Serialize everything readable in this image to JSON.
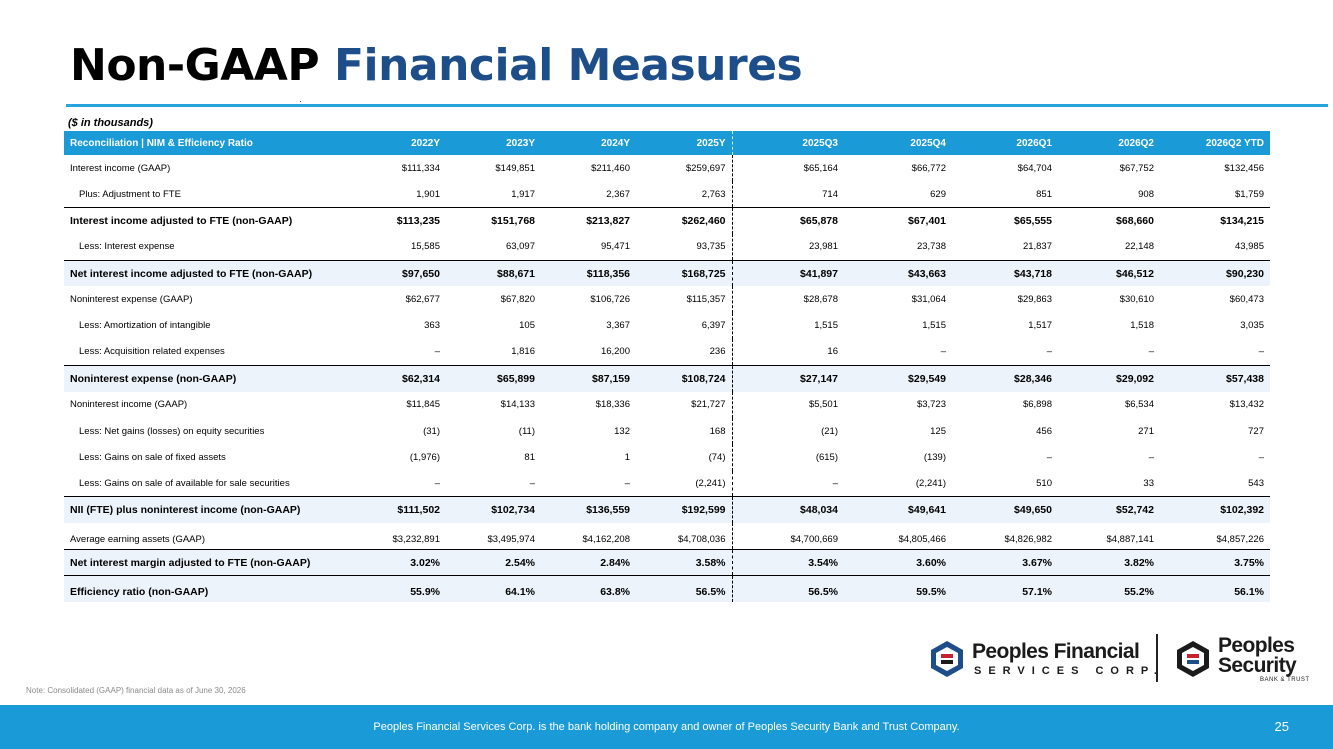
{
  "title": {
    "part1": "Non-GAAP",
    "part2": "Financial Measures"
  },
  "units": "($ in thousands)",
  "table": {
    "header_label": "Reconciliation | NIM & Efficiency Ratio",
    "columns": [
      "2022Y",
      "2023Y",
      "2024Y",
      "2025Y",
      "2025Q3",
      "2025Q4",
      "2026Q1",
      "2026Q2",
      "2026Q2 YTD"
    ],
    "rows": [
      {
        "label": "Interest income (GAAP)",
        "values": [
          "$111,334",
          "$149,851",
          "$211,460",
          "$259,697",
          "$65,164",
          "$66,772",
          "$64,704",
          "$67,752",
          "$132,456"
        ]
      },
      {
        "label": "Plus: Adjustment to FTE",
        "values": [
          "1,901",
          "1,917",
          "2,367",
          "2,763",
          "714",
          "629",
          "851",
          "908",
          "$1,759"
        ]
      },
      {
        "label": "Interest income adjusted to FTE (non-GAAP)",
        "values": [
          "$113,235",
          "$151,768",
          "$213,827",
          "$262,460",
          "$65,878",
          "$67,401",
          "$65,555",
          "$68,660",
          "$134,215"
        ]
      },
      {
        "label": "Less: Interest expense",
        "values": [
          "15,585",
          "63,097",
          "95,471",
          "93,735",
          "23,981",
          "23,738",
          "21,837",
          "22,148",
          "43,985"
        ]
      },
      {
        "label": "Net interest income adjusted to FTE (non-GAAP)",
        "values": [
          "$97,650",
          "$88,671",
          "$118,356",
          "$168,725",
          "$41,897",
          "$43,663",
          "$43,718",
          "$46,512",
          "$90,230"
        ]
      },
      {
        "label": "Noninterest expense (GAAP)",
        "values": [
          "$62,677",
          "$67,820",
          "$106,726",
          "$115,357",
          "$28,678",
          "$31,064",
          "$29,863",
          "$30,610",
          "$60,473"
        ]
      },
      {
        "label": "Less: Amortization of intangible",
        "values": [
          "363",
          "105",
          "3,367",
          "6,397",
          "1,515",
          "1,515",
          "1,517",
          "1,518",
          "3,035"
        ]
      },
      {
        "label": "Less: Acquisition related expenses",
        "values": [
          "–",
          "1,816",
          "16,200",
          "236",
          "16",
          "–",
          "–",
          "–",
          "–"
        ]
      },
      {
        "label": "Noninterest expense (non-GAAP)",
        "values": [
          "$62,314",
          "$65,899",
          "$87,159",
          "$108,724",
          "$27,147",
          "$29,549",
          "$28,346",
          "$29,092",
          "$57,438"
        ]
      },
      {
        "label": "Noninterest income (GAAP)",
        "values": [
          "$11,845",
          "$14,133",
          "$18,336",
          "$21,727",
          "$5,501",
          "$3,723",
          "$6,898",
          "$6,534",
          "$13,432"
        ]
      },
      {
        "label": "Less: Net gains (losses) on equity securities",
        "values": [
          "(31)",
          "(11)",
          "132",
          "168",
          "(21)",
          "125",
          "456",
          "271",
          "727"
        ]
      },
      {
        "label": "Less: Gains on sale of fixed assets",
        "values": [
          "(1,976)",
          "81",
          "1",
          "(74)",
          "(615)",
          "(139)",
          "–",
          "–",
          "–"
        ]
      },
      {
        "label": "Less: Gains on sale of available for sale securities",
        "values": [
          "–",
          "–",
          "–",
          "(2,241)",
          "–",
          "(2,241)",
          "510",
          "33",
          "543"
        ]
      },
      {
        "label": "NII (FTE) plus noninterest income (non-GAAP)",
        "values": [
          "$111,502",
          "$102,734",
          "$136,559",
          "$192,599",
          "$48,034",
          "$49,641",
          "$49,650",
          "$52,742",
          "$102,392"
        ]
      },
      {
        "label": "Average earning assets (GAAP)",
        "values": [
          "$3,232,891",
          "$3,495,974",
          "$4,162,208",
          "$4,708,036",
          "$4,700,669",
          "$4,805,466",
          "$4,826,982",
          "$4,887,141",
          "$4,857,226"
        ]
      },
      {
        "label": "Net interest margin adjusted to FTE (non-GAAP)",
        "values": [
          "3.02%",
          "2.54%",
          "2.84%",
          "3.58%",
          "3.54%",
          "3.60%",
          "3.67%",
          "3.82%",
          "3.75%"
        ]
      },
      {
        "label": "Efficiency ratio (non-GAAP)",
        "values": [
          "55.9%",
          "64.1%",
          "63.8%",
          "56.5%",
          "56.5%",
          "59.5%",
          "57.1%",
          "55.2%",
          "56.1%"
        ]
      }
    ]
  },
  "logos": {
    "left_line1": "Peoples Financial",
    "left_line2": "SERVICES CORP.",
    "right_line1": "Peoples",
    "right_line2": "Security",
    "right_line3": "BANK & TRUST",
    "colors": {
      "blue": "#1d4e89",
      "red": "#c8202f",
      "dark": "#1b1b1b"
    }
  },
  "note": "Note: Consolidated (GAAP) financial data as of June 30, 2026",
  "footer": {
    "text": "Peoples Financial Services Corp. is the bank holding company and owner of Peoples Security Bank and Trust Company.",
    "page": "25"
  },
  "colors": {
    "accent": "#1a9ad6",
    "title_blue": "#1d4e89",
    "shade": "#edf3fa"
  }
}
